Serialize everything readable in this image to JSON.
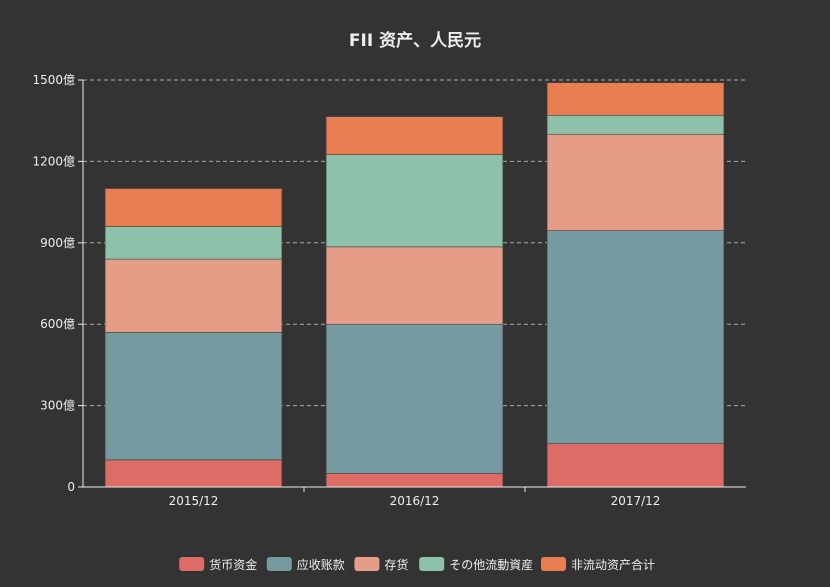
{
  "chart_data": {
    "type": "bar",
    "stacked": true,
    "title": "FII 资产、人民元",
    "xlabel": "",
    "ylabel": "",
    "categories": [
      "2015/12",
      "2016/12",
      "2017/12"
    ],
    "ylim": [
      0,
      1500
    ],
    "yticks": [
      0,
      300,
      600,
      900,
      1200,
      1500
    ],
    "ytick_labels": [
      "0",
      "300億",
      "600億",
      "900億",
      "1200億",
      "1500億"
    ],
    "grid": true,
    "legend_position": "bottom",
    "background": "#333333",
    "series": [
      {
        "name": "货币资金",
        "color": "#dd6b66",
        "values": [
          100,
          50,
          160
        ]
      },
      {
        "name": "应收账款",
        "color": "#759aa0",
        "values": [
          470,
          550,
          785
        ]
      },
      {
        "name": "存货",
        "color": "#e69d87",
        "values": [
          270,
          285,
          355
        ]
      },
      {
        "name": "その他流動資産",
        "color": "#8dc1a9",
        "values": [
          120,
          340,
          70
        ]
      },
      {
        "name": "非流动资产合计",
        "color": "#ea7e53",
        "values": [
          140,
          140,
          120
        ]
      }
    ]
  }
}
